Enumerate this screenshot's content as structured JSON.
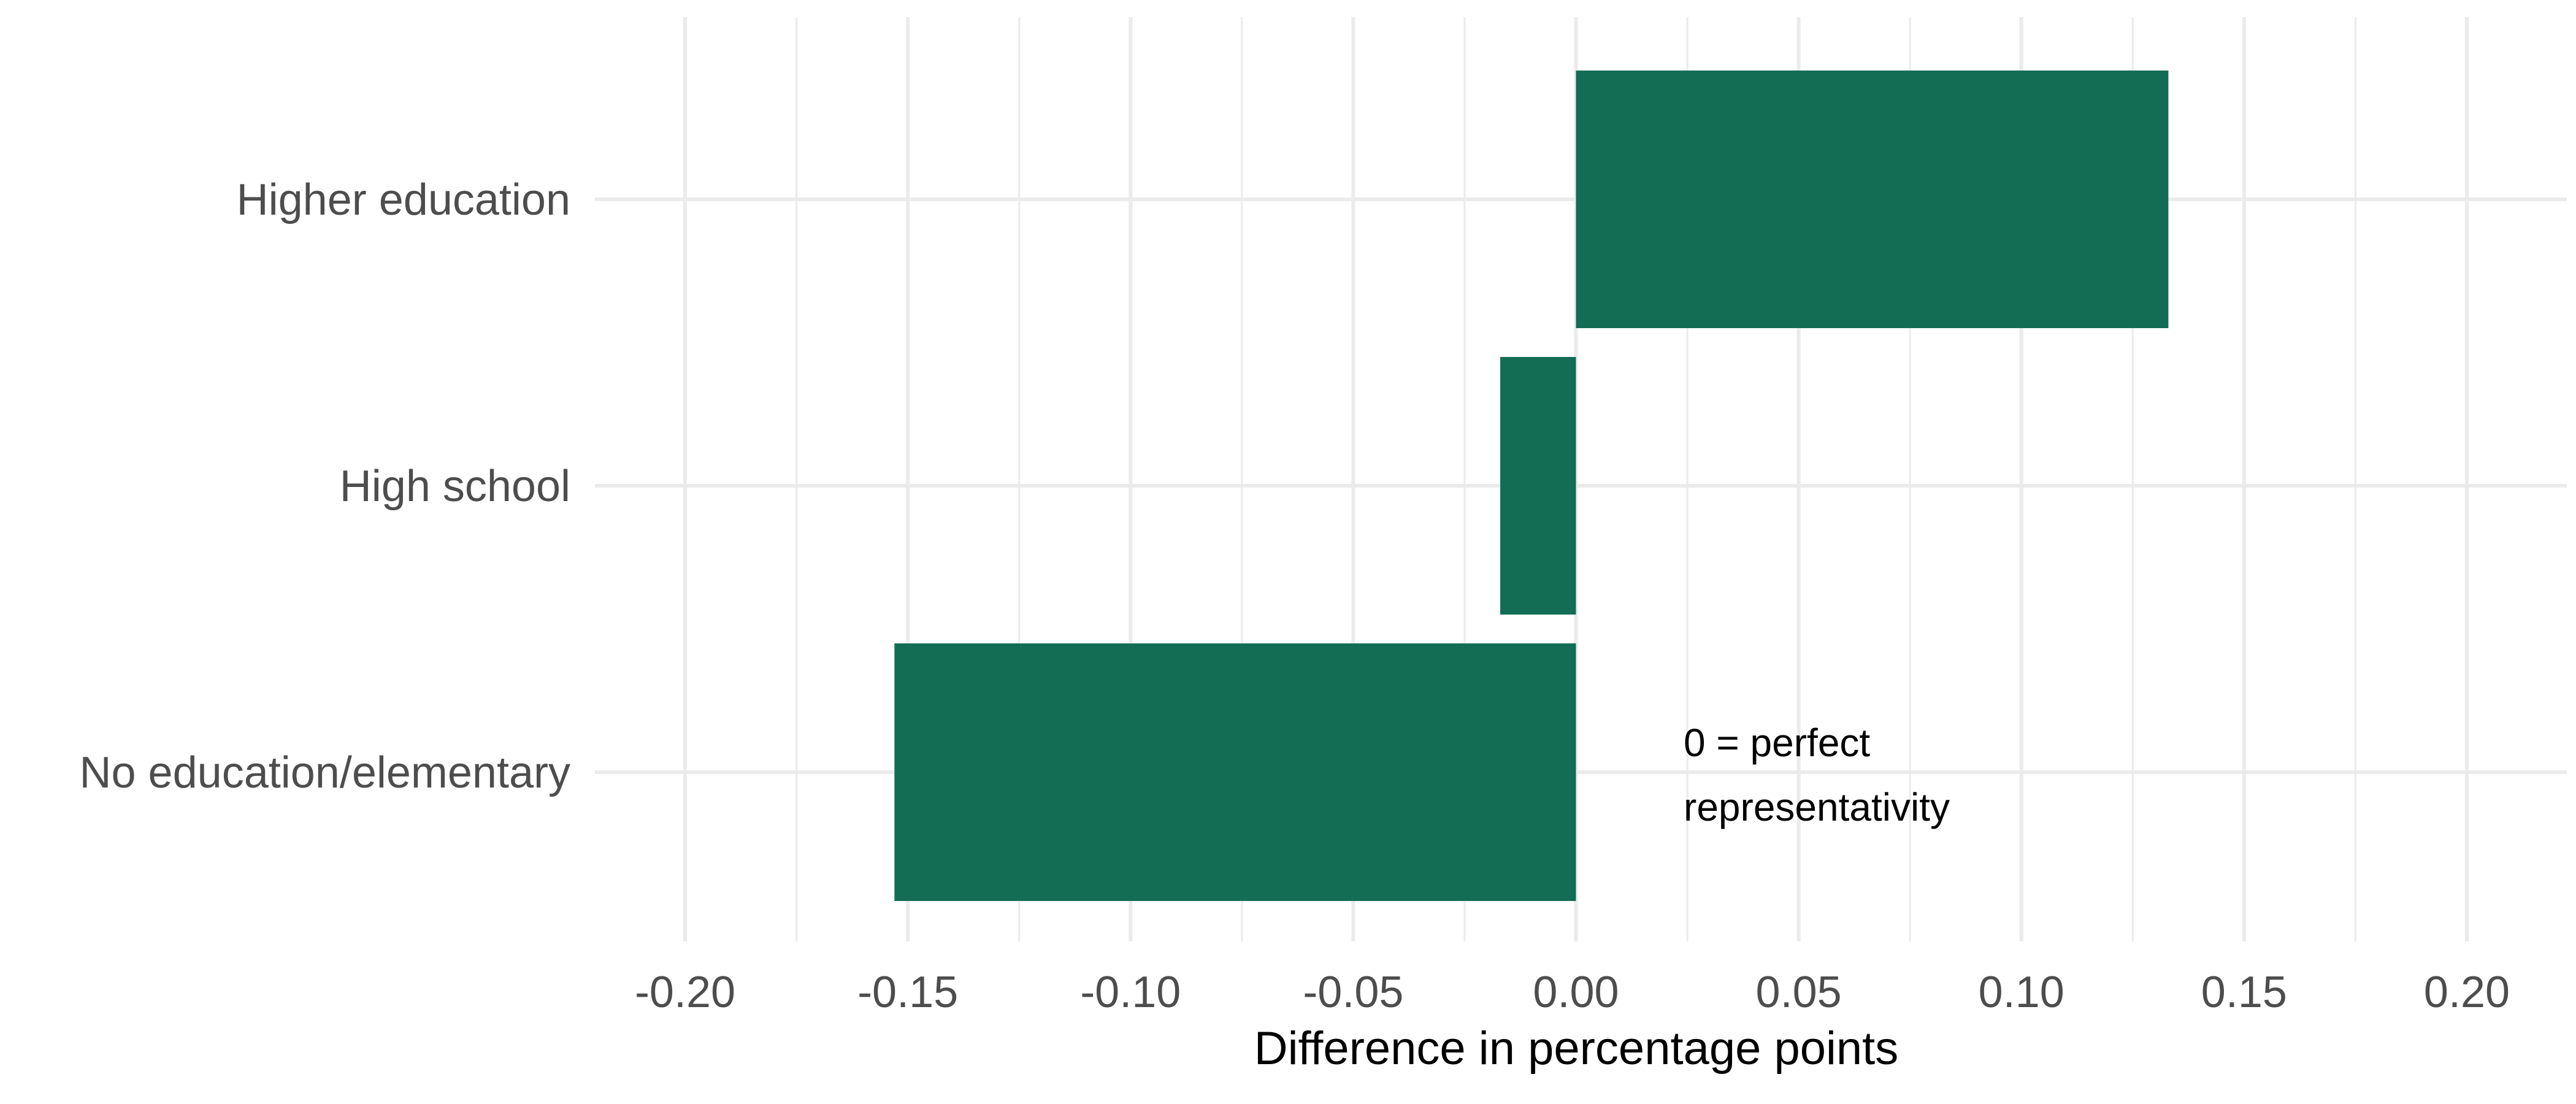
{
  "chart_data": {
    "type": "bar",
    "orientation": "horizontal",
    "categories": [
      "Higher education",
      "High school",
      "No education/elementary"
    ],
    "values": [
      0.133,
      -0.017,
      -0.153
    ],
    "xlabel": "Difference in percentage points",
    "ylabel": "",
    "title": "",
    "xlim": [
      -0.2,
      0.2
    ],
    "x_ticks": [
      -0.2,
      -0.15,
      -0.1,
      -0.05,
      0.0,
      0.05,
      0.1,
      0.15,
      0.2
    ],
    "x_tick_labels": [
      "-0.20",
      "-0.15",
      "-0.10",
      "-0.05",
      "0.00",
      "0.05",
      "0.10",
      "0.15",
      "0.20"
    ],
    "grid": true,
    "legend": "none",
    "bar_color": "#136d55",
    "annotation": {
      "lines": [
        "0 = perfect",
        "representativity"
      ]
    }
  }
}
